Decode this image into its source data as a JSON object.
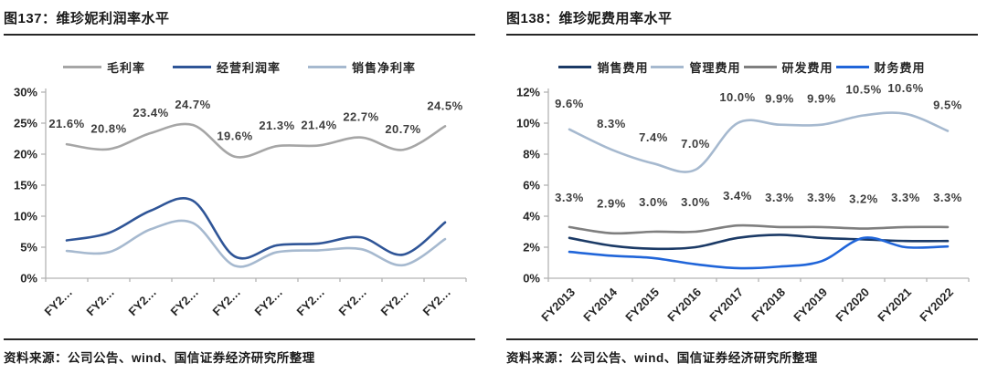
{
  "page": {
    "background": "#ffffff"
  },
  "figures": [
    {
      "title": "图137：维珍妮利润率水平",
      "source": "资料来源：公司公告、wind、国信证券经济研究所整理"
    },
    {
      "title": "图138：维珍妮费用率水平",
      "source": "资料来源：公司公告、wind、国信证券经济研究所整理"
    }
  ],
  "chart_data": [
    {
      "type": "line",
      "title": "维珍妮利润率水平",
      "x_labels": [
        "FY2…",
        "FY2…",
        "FY2…",
        "FY2…",
        "FY2…",
        "FY2…",
        "FY2…",
        "FY2…",
        "FY2…",
        "FY2…"
      ],
      "ylim": [
        0,
        30
      ],
      "y_tick_labels": [
        "0%",
        "5%",
        "10%",
        "15%",
        "20%",
        "25%",
        "30%"
      ],
      "grid": false,
      "legend_position": "top",
      "legend_gap": 30,
      "axis_color": "#b3b3b3",
      "series": [
        {
          "key": "gross-margin",
          "name": "毛利率",
          "color": "#a6a6a6",
          "values": [
            21.6,
            20.8,
            23.4,
            24.7,
            19.6,
            21.3,
            21.4,
            22.7,
            20.7,
            24.5
          ],
          "point_labels": [
            "21.6%",
            "20.8%",
            "23.4%",
            "24.7%",
            "19.6%",
            "21.3%",
            "21.4%",
            "22.7%",
            "20.7%",
            "24.5%"
          ],
          "label_dy": -18
        },
        {
          "key": "operating-margin",
          "name": "经营利润率",
          "color": "#2f5597",
          "values": [
            6.1,
            7.3,
            10.9,
            12.5,
            3.5,
            5.3,
            5.6,
            6.6,
            3.8,
            9.0
          ]
        },
        {
          "key": "net-margin",
          "name": "销售净利率",
          "color": "#a6b9cf",
          "values": [
            4.4,
            4.2,
            7.9,
            8.9,
            2.0,
            4.2,
            4.5,
            4.7,
            2.1,
            6.3
          ]
        }
      ]
    },
    {
      "type": "line",
      "title": "维珍妮费用率水平",
      "x_labels": [
        "FY2013",
        "FY2014",
        "FY2015",
        "FY2016",
        "FY2017",
        "FY2018",
        "FY2019",
        "FY2020",
        "FY2021",
        "FY2022"
      ],
      "ylim": [
        0,
        12
      ],
      "y_tick_labels": [
        "0%",
        "2%",
        "4%",
        "6%",
        "8%",
        "10%",
        "12%"
      ],
      "grid": false,
      "legend_position": "top",
      "legend_gap": 3,
      "axis_color": "#b3b3b3",
      "series": [
        {
          "key": "selling-expense",
          "name": "销售费用",
          "color": "#1b3a66",
          "values": [
            2.6,
            2.1,
            1.9,
            2.0,
            2.6,
            2.8,
            2.6,
            2.5,
            2.4,
            2.4
          ]
        },
        {
          "key": "admin-expense",
          "name": "管理费用",
          "color": "#a6b9cf",
          "values": [
            9.6,
            8.3,
            7.4,
            7.0,
            10.0,
            9.9,
            9.9,
            10.5,
            10.6,
            9.5
          ],
          "point_labels": [
            "9.6%",
            "8.3%",
            "7.4%",
            "7.0%",
            "10.0%",
            "9.9%",
            "9.9%",
            "10.5%",
            "10.6%",
            "9.5%"
          ],
          "label_dy": -24
        },
        {
          "key": "rnd-expense",
          "name": "研发费用",
          "color": "#7f7f7f",
          "values": [
            3.3,
            2.9,
            3.0,
            3.0,
            3.4,
            3.3,
            3.3,
            3.2,
            3.3,
            3.3
          ],
          "point_labels": [
            "3.3%",
            "2.9%",
            "3.0%",
            "3.0%",
            "3.4%",
            "3.3%",
            "3.3%",
            "3.2%",
            "3.3%",
            "3.3%"
          ],
          "label_dy": -28
        },
        {
          "key": "finance-expense",
          "name": "财务费用",
          "color": "#2065d9",
          "values": [
            1.7,
            1.45,
            1.3,
            0.9,
            0.65,
            0.75,
            1.1,
            2.6,
            2.0,
            2.05
          ]
        }
      ]
    }
  ]
}
